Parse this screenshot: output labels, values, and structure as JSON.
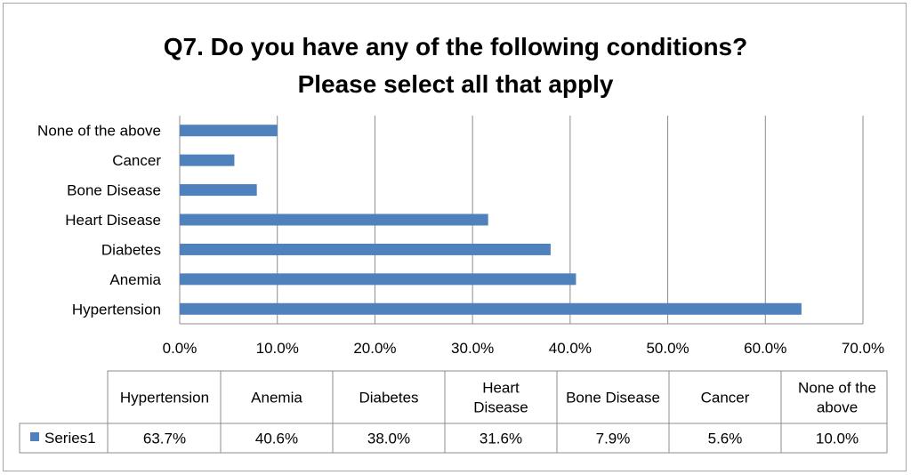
{
  "chart_data": {
    "type": "bar",
    "orientation": "horizontal",
    "title_lines": [
      "Q7. Do you have any of the following conditions?",
      "Please select all that apply"
    ],
    "categories": [
      "Hypertension",
      "Anemia",
      "Diabetes",
      "Heart Disease",
      "Bone Disease",
      "Cancer",
      "None of the above"
    ],
    "series": [
      {
        "name": "Series1",
        "values": [
          63.7,
          40.6,
          38.0,
          31.6,
          7.9,
          5.6,
          10.0
        ],
        "color": "#4f81bd"
      }
    ],
    "xlim": [
      0,
      70
    ],
    "x_ticks": [
      0,
      10,
      20,
      30,
      40,
      50,
      60,
      70
    ],
    "x_tick_labels": [
      "0.0%",
      "10.0%",
      "20.0%",
      "30.0%",
      "40.0%",
      "50.0%",
      "60.0%",
      "70.0%"
    ],
    "grid": true,
    "data_table": {
      "headers": [
        [
          "Hypertension"
        ],
        [
          "Anemia"
        ],
        [
          "Diabetes"
        ],
        [
          "Heart",
          "Disease"
        ],
        [
          "Bone Disease"
        ],
        [
          "Cancer"
        ],
        [
          "None of the",
          "above"
        ]
      ],
      "row_label": "Series1",
      "cells": [
        "63.7%",
        "40.6%",
        "38.0%",
        "31.6%",
        "7.9%",
        "5.6%",
        "10.0%"
      ]
    }
  }
}
